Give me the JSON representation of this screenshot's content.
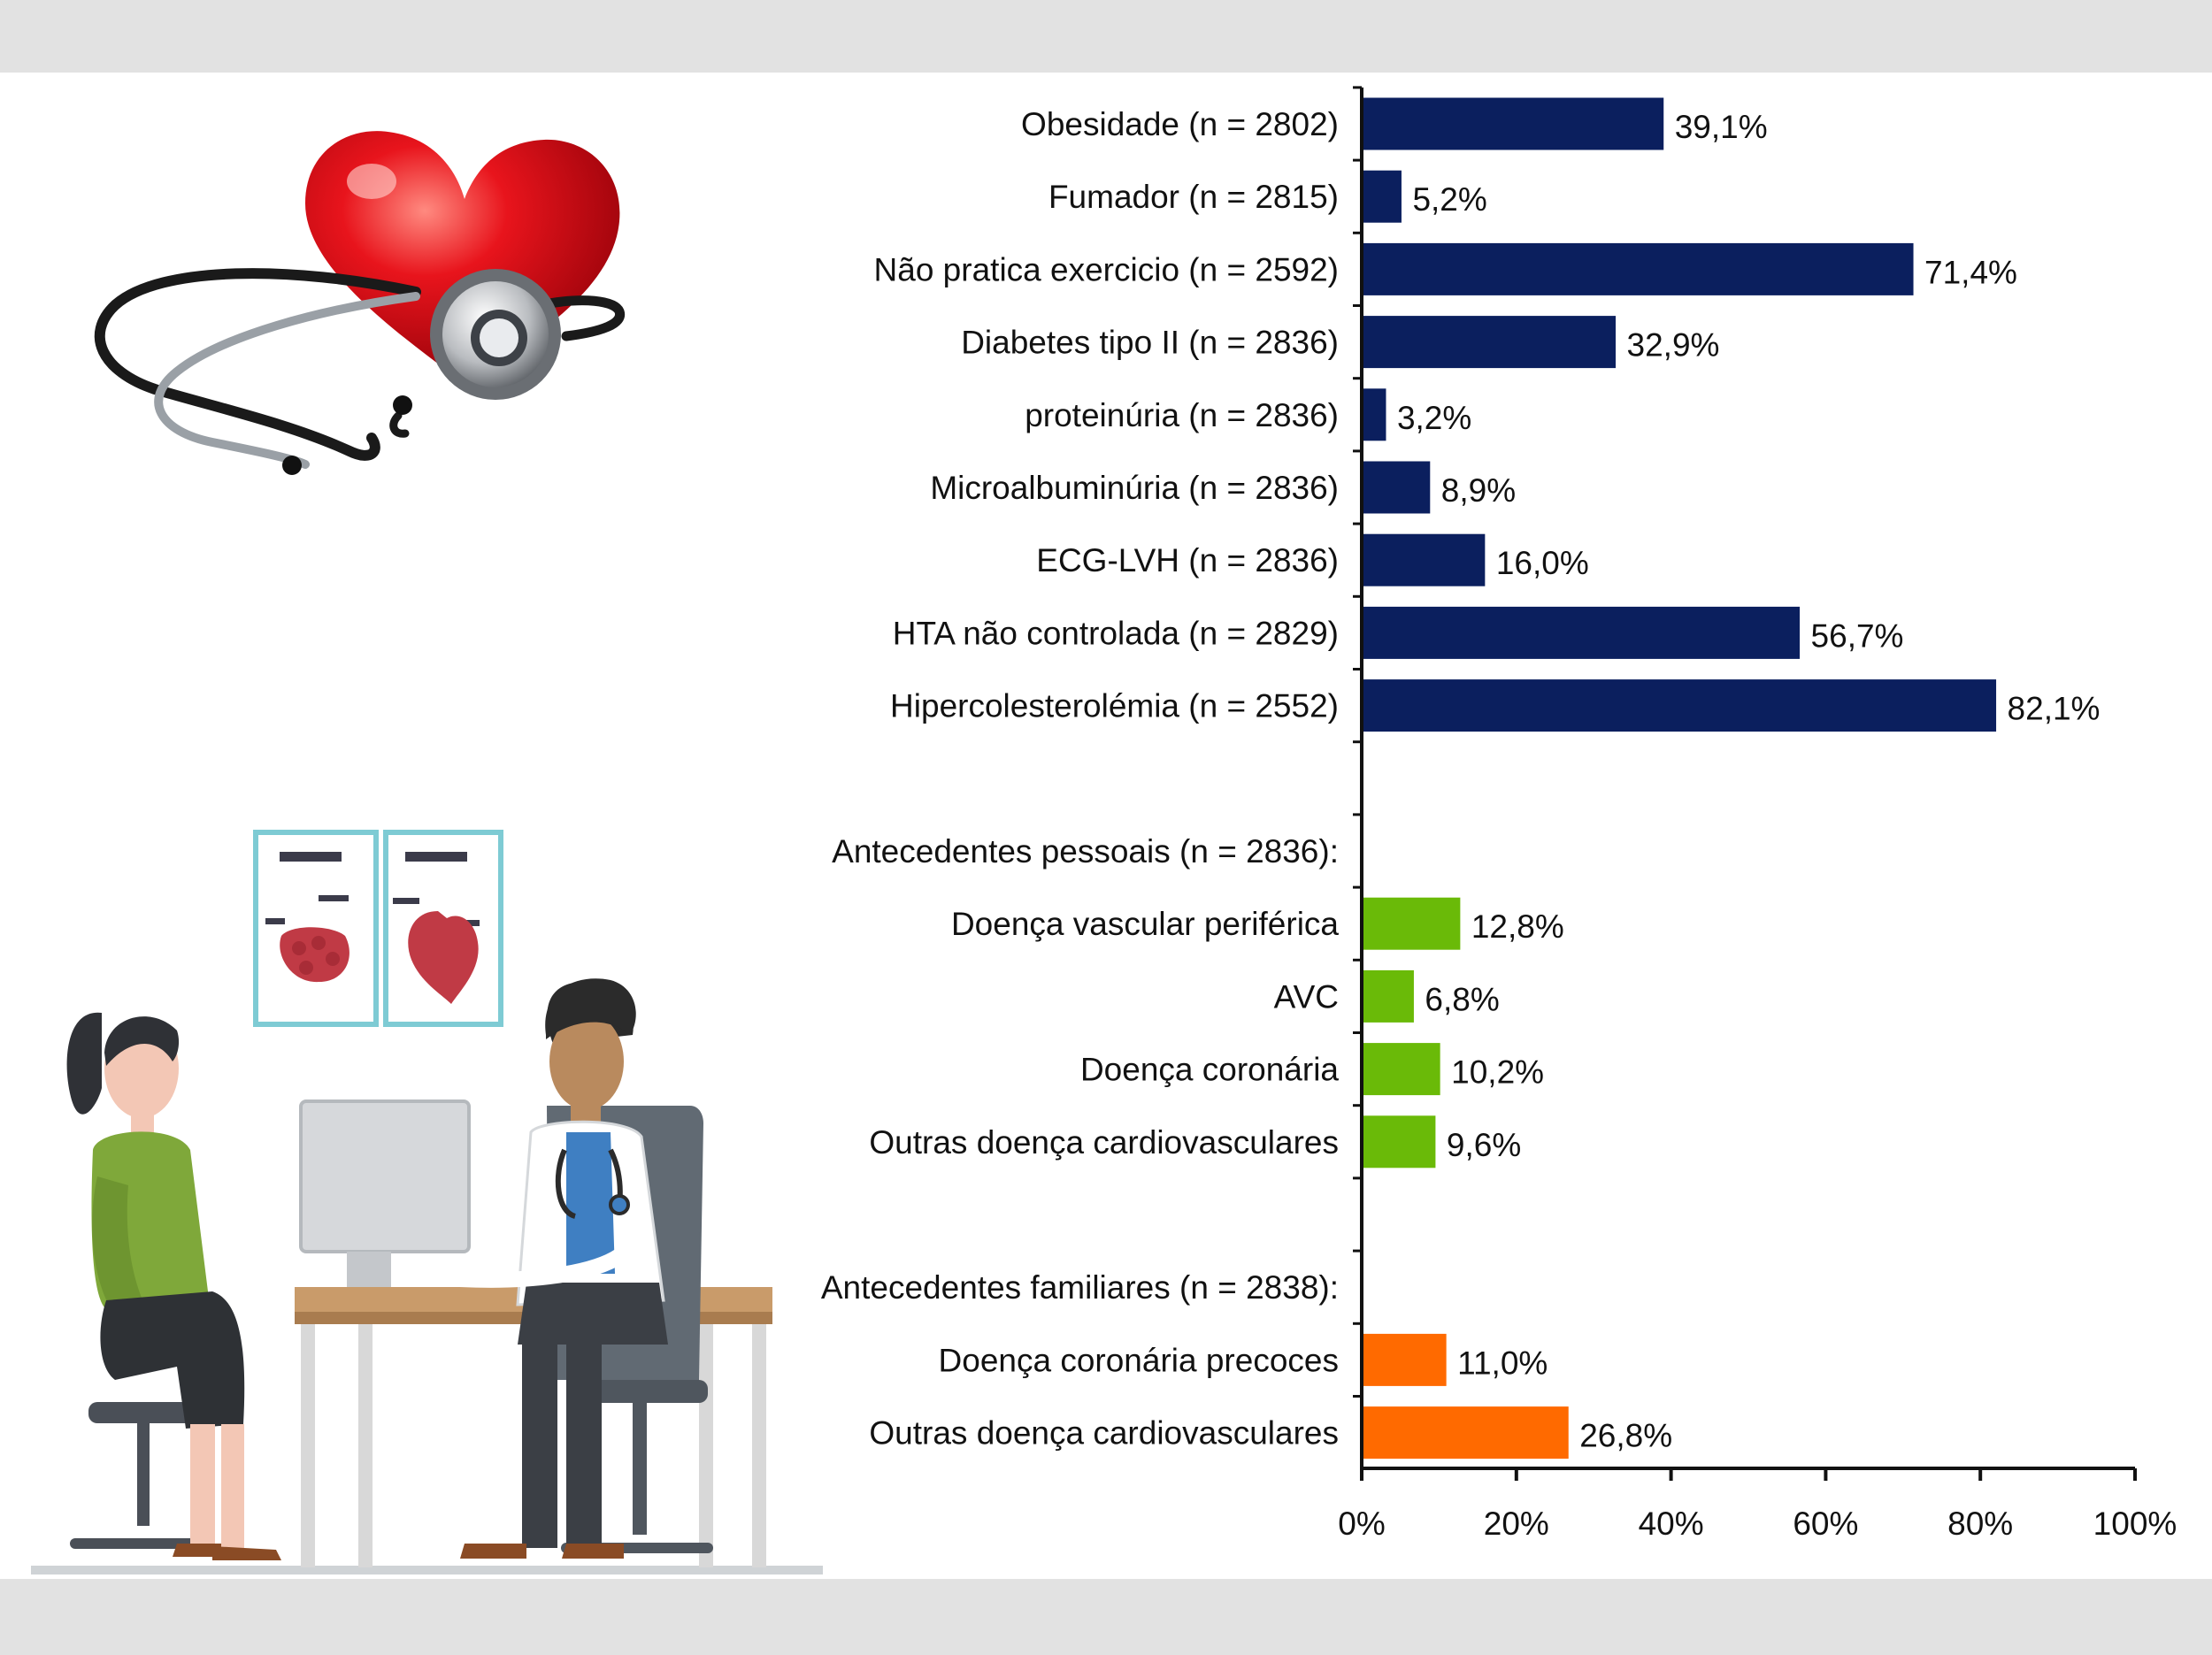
{
  "colors": {
    "risk_factors": "#0b1f5e",
    "personal_history": "#6aba08",
    "family_history": "#ff6a00",
    "bands": "#e2e2e2"
  },
  "illustrations": [
    {
      "name": "heart-stethoscope-illustration"
    },
    {
      "name": "doctor-patient-consultation-illustration"
    }
  ],
  "chart_data": {
    "type": "bar",
    "orientation": "horizontal",
    "xlim": [
      0,
      100
    ],
    "xticks": [
      "0%",
      "20%",
      "40%",
      "60%",
      "80%",
      "100%"
    ],
    "grid": false,
    "legend": "none",
    "rows": [
      {
        "label": "Obesidade (n = 2802)",
        "value": 39.1,
        "value_label": "39,1%",
        "group": "risk_factors"
      },
      {
        "label": "Fumador (n = 2815)",
        "value": 5.2,
        "value_label": "5,2%",
        "group": "risk_factors"
      },
      {
        "label": "Não pratica exercicio (n = 2592)",
        "value": 71.4,
        "value_label": "71,4%",
        "group": "risk_factors"
      },
      {
        "label": "Diabetes tipo II (n = 2836)",
        "value": 32.9,
        "value_label": "32,9%",
        "group": "risk_factors"
      },
      {
        "label": "proteinúria (n = 2836)",
        "value": 3.2,
        "value_label": "3,2%",
        "group": "risk_factors"
      },
      {
        "label": "Microalbuminúria (n = 2836)",
        "value": 8.9,
        "value_label": "8,9%",
        "group": "risk_factors"
      },
      {
        "label": "ECG-LVH (n = 2836)",
        "value": 16.0,
        "value_label": "16,0%",
        "group": "risk_factors"
      },
      {
        "label": "HTA não controlada (n = 2829)",
        "value": 56.7,
        "value_label": "56,7%",
        "group": "risk_factors"
      },
      {
        "label": "Hipercolesterolémia (n = 2552)",
        "value": 82.1,
        "value_label": "82,1%",
        "group": "risk_factors"
      },
      {
        "label": "",
        "value": null,
        "value_label": "",
        "group": "spacer"
      },
      {
        "label": "Antecedentes pessoais (n = 2836):",
        "value": null,
        "value_label": "",
        "group": "header"
      },
      {
        "label": "Doença vascular periférica",
        "value": 12.8,
        "value_label": "12,8%",
        "group": "personal_history"
      },
      {
        "label": "AVC",
        "value": 6.8,
        "value_label": "6,8%",
        "group": "personal_history"
      },
      {
        "label": "Doença coronária",
        "value": 10.2,
        "value_label": "10,2%",
        "group": "personal_history"
      },
      {
        "label": "Outras doença cardiovasculares",
        "value": 9.6,
        "value_label": "9,6%",
        "group": "personal_history"
      },
      {
        "label": "",
        "value": null,
        "value_label": "",
        "group": "spacer"
      },
      {
        "label": "Antecedentes familiares (n = 2838):",
        "value": null,
        "value_label": "",
        "group": "header"
      },
      {
        "label": "Doença coronária precoces",
        "value": 11.0,
        "value_label": "11,0%",
        "group": "family_history"
      },
      {
        "label": "Outras doença cardiovasculares",
        "value": 26.8,
        "value_label": "26,8%",
        "group": "family_history"
      }
    ]
  }
}
